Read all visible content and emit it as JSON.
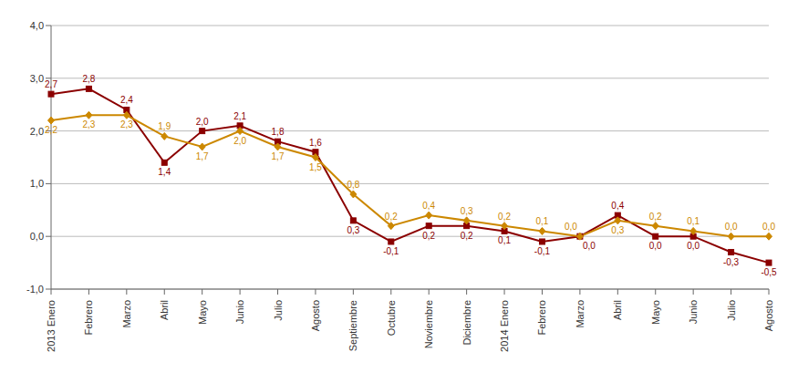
{
  "chart_data": {
    "type": "line",
    "categories": [
      "2013 Enero",
      "Febrero",
      "Marzo",
      "Abril",
      "Mayo",
      "Junio",
      "Julio",
      "Agosto",
      "Septiembre",
      "Octubre",
      "Noviembre",
      "Diciembre",
      "2014 Enero",
      "Febrero",
      "Marzo",
      "Abril",
      "Mayo",
      "Junio",
      "Julio",
      "Agosto"
    ],
    "series": [
      {
        "color": "#8B0000",
        "marker": "square",
        "values": [
          2.7,
          2.8,
          2.4,
          1.4,
          2.0,
          2.1,
          1.8,
          1.6,
          0.3,
          -0.1,
          0.2,
          0.2,
          0.1,
          -0.1,
          0.0,
          0.4,
          0.0,
          0.0,
          -0.3,
          -0.5
        ],
        "value_labels": [
          "2,7",
          "2,8",
          "2,4",
          "1,4",
          "2,0",
          "2,1",
          "1,8",
          "1,6",
          "0,3",
          "-0,1",
          "0,2",
          "0,2",
          "0,1",
          "-0,1",
          "0,0",
          "0,4",
          "0,0",
          "0,0",
          "-0,3",
          "-0,5"
        ]
      },
      {
        "color": "#CC8800",
        "marker": "diamond",
        "values": [
          2.2,
          2.3,
          2.3,
          1.9,
          1.7,
          2.0,
          1.7,
          1.5,
          0.8,
          0.2,
          0.4,
          0.3,
          0.2,
          0.1,
          0.0,
          0.3,
          0.2,
          0.1,
          0.0,
          0.0
        ],
        "value_labels": [
          "2,2",
          "2,3",
          "2,3",
          "1,9",
          "1,7",
          "2,0",
          "1,7",
          "1,5",
          "0,8",
          "0,2",
          "0,4",
          "0,3",
          "0,2",
          "0,1",
          "0,0",
          "0,3",
          "0,2",
          "0,1",
          "0,0",
          "0,0"
        ]
      }
    ],
    "ylim": [
      -1.0,
      4.0
    ],
    "yticks": [
      {
        "value": -1.0,
        "label": "-1,0"
      },
      {
        "value": 0.0,
        "label": "0,0"
      },
      {
        "value": 1.0,
        "label": "1,0"
      },
      {
        "value": 2.0,
        "label": "2,0"
      },
      {
        "value": 3.0,
        "label": "3,0"
      },
      {
        "value": 4.0,
        "label": "4,0"
      }
    ],
    "grid": true,
    "data_labels": true
  }
}
